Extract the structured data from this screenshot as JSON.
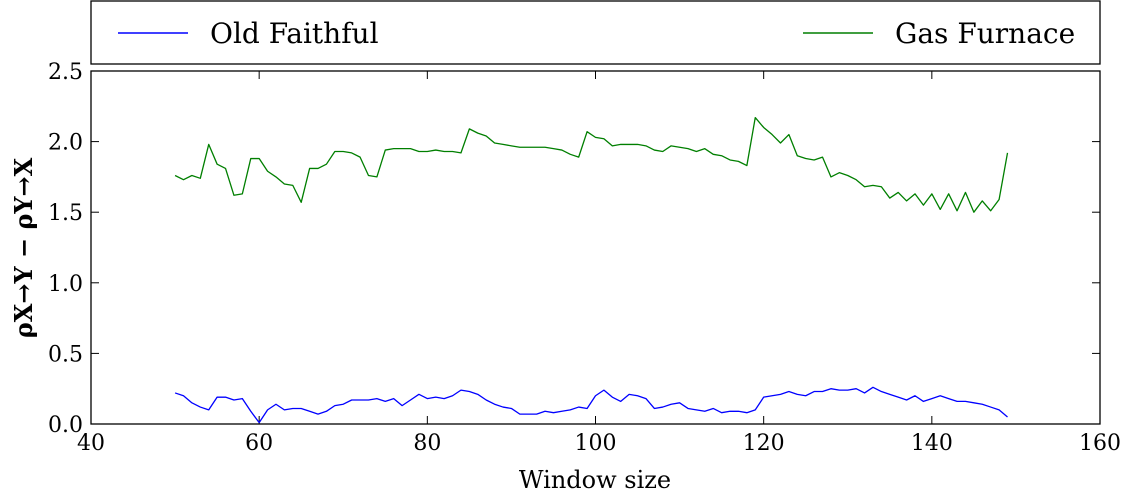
{
  "chart_data": {
    "type": "line",
    "xlabel": "Window size",
    "ylabel": "ρX→Y − ρY→X",
    "xlim": [
      40,
      160
    ],
    "ylim": [
      0.0,
      2.5
    ],
    "xticks": [
      40,
      60,
      80,
      100,
      120,
      140,
      160
    ],
    "yticks": [
      0.0,
      0.5,
      1.0,
      1.5,
      2.0,
      2.5
    ],
    "xtick_labels": [
      "40",
      "60",
      "80",
      "100",
      "120",
      "140",
      "160"
    ],
    "ytick_labels": [
      "0.0",
      "0.5",
      "1.0",
      "1.5",
      "2.0",
      "2.5"
    ],
    "grid": false,
    "legend_position": "top, outside plot, spanning full width",
    "series": [
      {
        "name": "Old Faithful",
        "color": "#0000ff",
        "x": [
          50,
          51,
          52,
          53,
          54,
          55,
          56,
          57,
          58,
          59,
          60,
          61,
          62,
          63,
          64,
          65,
          66,
          67,
          68,
          69,
          70,
          71,
          72,
          73,
          74,
          75,
          76,
          77,
          78,
          79,
          80,
          81,
          82,
          83,
          84,
          85,
          86,
          87,
          88,
          89,
          90,
          91,
          92,
          93,
          94,
          95,
          96,
          97,
          98,
          99,
          100,
          101,
          102,
          103,
          104,
          105,
          106,
          107,
          108,
          109,
          110,
          111,
          112,
          113,
          114,
          115,
          116,
          117,
          118,
          119,
          120,
          121,
          122,
          123,
          124,
          125,
          126,
          127,
          128,
          129,
          130,
          131,
          132,
          133,
          134,
          135,
          136,
          137,
          138,
          139,
          140,
          141,
          142,
          143,
          144,
          145,
          146,
          147,
          148,
          149
        ],
        "y": [
          0.22,
          0.2,
          0.15,
          0.12,
          0.1,
          0.19,
          0.19,
          0.17,
          0.18,
          0.09,
          0.01,
          0.1,
          0.14,
          0.1,
          0.11,
          0.11,
          0.09,
          0.07,
          0.09,
          0.13,
          0.14,
          0.17,
          0.17,
          0.17,
          0.18,
          0.16,
          0.18,
          0.13,
          0.17,
          0.21,
          0.18,
          0.19,
          0.18,
          0.2,
          0.24,
          0.23,
          0.21,
          0.17,
          0.14,
          0.12,
          0.11,
          0.07,
          0.07,
          0.07,
          0.09,
          0.08,
          0.09,
          0.1,
          0.12,
          0.11,
          0.2,
          0.24,
          0.19,
          0.16,
          0.21,
          0.2,
          0.18,
          0.11,
          0.12,
          0.14,
          0.15,
          0.11,
          0.1,
          0.09,
          0.11,
          0.08,
          0.09,
          0.09,
          0.08,
          0.1,
          0.19,
          0.2,
          0.21,
          0.23,
          0.21,
          0.2,
          0.23,
          0.23,
          0.25,
          0.24,
          0.24,
          0.25,
          0.22,
          0.26,
          0.23,
          0.21,
          0.19,
          0.17,
          0.2,
          0.16,
          0.18,
          0.2,
          0.18,
          0.16,
          0.16,
          0.15,
          0.14,
          0.12,
          0.1,
          0.05
        ]
      },
      {
        "name": "Gas Furnace",
        "color": "#007f00",
        "x": [
          50,
          51,
          52,
          53,
          54,
          55,
          56,
          57,
          58,
          59,
          60,
          61,
          62,
          63,
          64,
          65,
          66,
          67,
          68,
          69,
          70,
          71,
          72,
          73,
          74,
          75,
          76,
          77,
          78,
          79,
          80,
          81,
          82,
          83,
          84,
          85,
          86,
          87,
          88,
          89,
          90,
          91,
          92,
          93,
          94,
          95,
          96,
          97,
          98,
          99,
          100,
          101,
          102,
          103,
          104,
          105,
          106,
          107,
          108,
          109,
          110,
          111,
          112,
          113,
          114,
          115,
          116,
          117,
          118,
          119,
          120,
          121,
          122,
          123,
          124,
          125,
          126,
          127,
          128,
          129,
          130,
          131,
          132,
          133,
          134,
          135,
          136,
          137,
          138,
          139,
          140,
          141,
          142,
          143,
          144,
          145,
          146,
          147,
          148,
          149
        ],
        "y": [
          1.76,
          1.73,
          1.76,
          1.74,
          1.98,
          1.84,
          1.81,
          1.62,
          1.63,
          1.88,
          1.88,
          1.79,
          1.75,
          1.7,
          1.69,
          1.57,
          1.81,
          1.81,
          1.84,
          1.93,
          1.93,
          1.92,
          1.89,
          1.76,
          1.75,
          1.94,
          1.95,
          1.95,
          1.95,
          1.93,
          1.93,
          1.94,
          1.93,
          1.93,
          1.92,
          2.09,
          2.06,
          2.04,
          1.99,
          1.98,
          1.97,
          1.96,
          1.96,
          1.96,
          1.96,
          1.95,
          1.94,
          1.91,
          1.89,
          2.07,
          2.03,
          2.02,
          1.97,
          1.98,
          1.98,
          1.98,
          1.97,
          1.94,
          1.93,
          1.97,
          1.96,
          1.95,
          1.93,
          1.95,
          1.91,
          1.9,
          1.87,
          1.86,
          1.83,
          2.17,
          2.1,
          2.05,
          1.99,
          2.05,
          1.9,
          1.88,
          1.87,
          1.89,
          1.75,
          1.78,
          1.76,
          1.73,
          1.68,
          1.69,
          1.68,
          1.6,
          1.64,
          1.58,
          1.63,
          1.55,
          1.63,
          1.52,
          1.63,
          1.51,
          1.64,
          1.5,
          1.58,
          1.51,
          1.59,
          1.92
        ]
      }
    ]
  }
}
